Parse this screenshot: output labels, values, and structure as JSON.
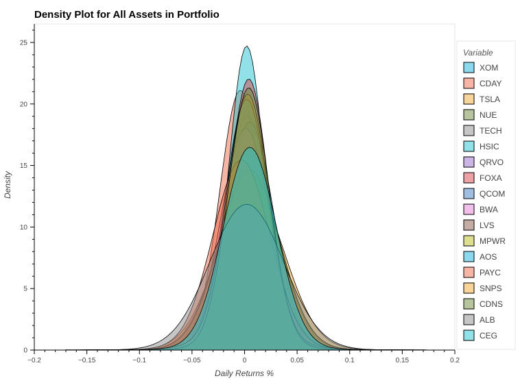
{
  "chart_data": {
    "type": "area",
    "title": "Density Plot for All Assets in Portfolio",
    "xlabel": "Daily Returns %",
    "ylabel": "Density",
    "xlim": [
      -0.2,
      0.2
    ],
    "ylim": [
      0,
      26.5
    ],
    "x_ticks": [
      -0.2,
      -0.15,
      -0.1,
      -0.05,
      0,
      0.05,
      0.1,
      0.15,
      0.2
    ],
    "x_tick_labels": [
      "−0.2",
      "−0.15",
      "−0.1",
      "−0.05",
      "0",
      "0.05",
      "0.1",
      "0.15",
      "0.2"
    ],
    "y_ticks": [
      0,
      5,
      10,
      15,
      20,
      25
    ],
    "y_tick_labels": [
      "0",
      "5",
      "10",
      "15",
      "20",
      "25"
    ],
    "grid": false,
    "legend_title": "Variable",
    "legend_position": "right",
    "series": [
      {
        "name": "XOM",
        "color": "#1ab3e0",
        "peak_x": 0.002,
        "peak_density": 20.0
      },
      {
        "name": "CDAY",
        "color": "#ef6b4c",
        "peak_x": -0.004,
        "peak_density": 20.5
      },
      {
        "name": "TSLA",
        "color": "#f0a934",
        "peak_x": 0.006,
        "peak_density": 12.8
      },
      {
        "name": "NUE",
        "color": "#6d8c3c",
        "peak_x": 0.004,
        "peak_density": 15.5
      },
      {
        "name": "TECH",
        "color": "#8d8d8d",
        "peak_x": 0.003,
        "peak_density": 18.5
      },
      {
        "name": "HSIC",
        "color": "#22c4d2",
        "peak_x": 0.002,
        "peak_density": 24.0
      },
      {
        "name": "QRVO",
        "color": "#9a6cc9",
        "peak_x": 0.004,
        "peak_density": 14.5
      },
      {
        "name": "FOXA",
        "color": "#d9444a",
        "peak_x": 0.004,
        "peak_density": 21.4
      },
      {
        "name": "QCOM",
        "color": "#3f7fc1",
        "peak_x": 0.005,
        "peak_density": 18.0
      },
      {
        "name": "BWA",
        "color": "#e57fd7",
        "peak_x": 0.001,
        "peak_density": 17.5
      },
      {
        "name": "LVS",
        "color": "#8c5a4a",
        "peak_x": 0.004,
        "peak_density": 14.0
      },
      {
        "name": "MPWR",
        "color": "#bdbd22",
        "peak_x": 0.005,
        "peak_density": 14.2
      },
      {
        "name": "AOS",
        "color": "#1ab3e0",
        "peak_x": 0.002,
        "peak_density": 19.8
      },
      {
        "name": "PAYC",
        "color": "#ef6b4c",
        "peak_x": -0.003,
        "peak_density": 15.0
      },
      {
        "name": "SNPS",
        "color": "#f0a934",
        "peak_x": 0.003,
        "peak_density": 20.2
      },
      {
        "name": "CDNS",
        "color": "#6d8c3c",
        "peak_x": 0.004,
        "peak_density": 20.7
      },
      {
        "name": "ALB",
        "color": "#8d8d8d",
        "peak_x": 0.002,
        "peak_density": 11.5
      },
      {
        "name": "CEG",
        "color": "#22c4d2",
        "peak_x": 0.005,
        "peak_density": 16.0
      }
    ]
  }
}
